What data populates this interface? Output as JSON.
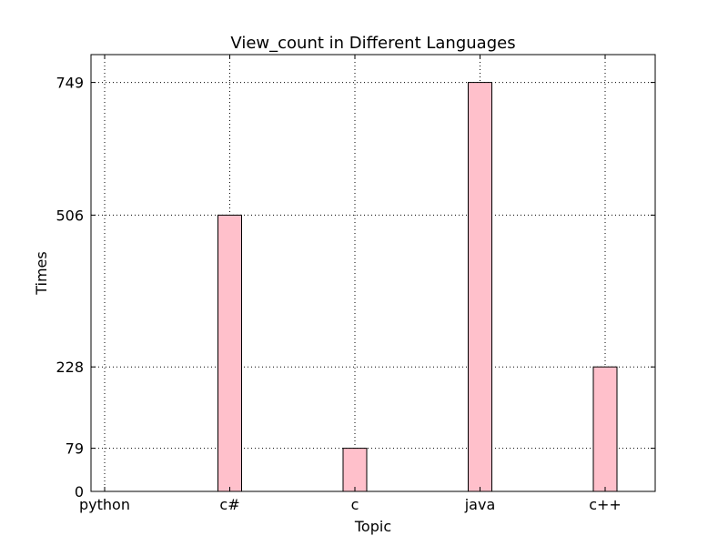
{
  "chart_data": {
    "type": "bar",
    "title": "View_count in Different Languages",
    "xlabel": "Topic",
    "ylabel": "Times",
    "categories": [
      "python",
      "c#",
      "c",
      "java",
      "c++"
    ],
    "values": [
      0,
      506,
      79,
      749,
      228
    ],
    "yticks": [
      0,
      79,
      228,
      506,
      749
    ],
    "ylim": [
      0,
      800
    ],
    "grid": true,
    "bar_color": "#ffc0cb",
    "bar_edge_color": "#000000"
  }
}
